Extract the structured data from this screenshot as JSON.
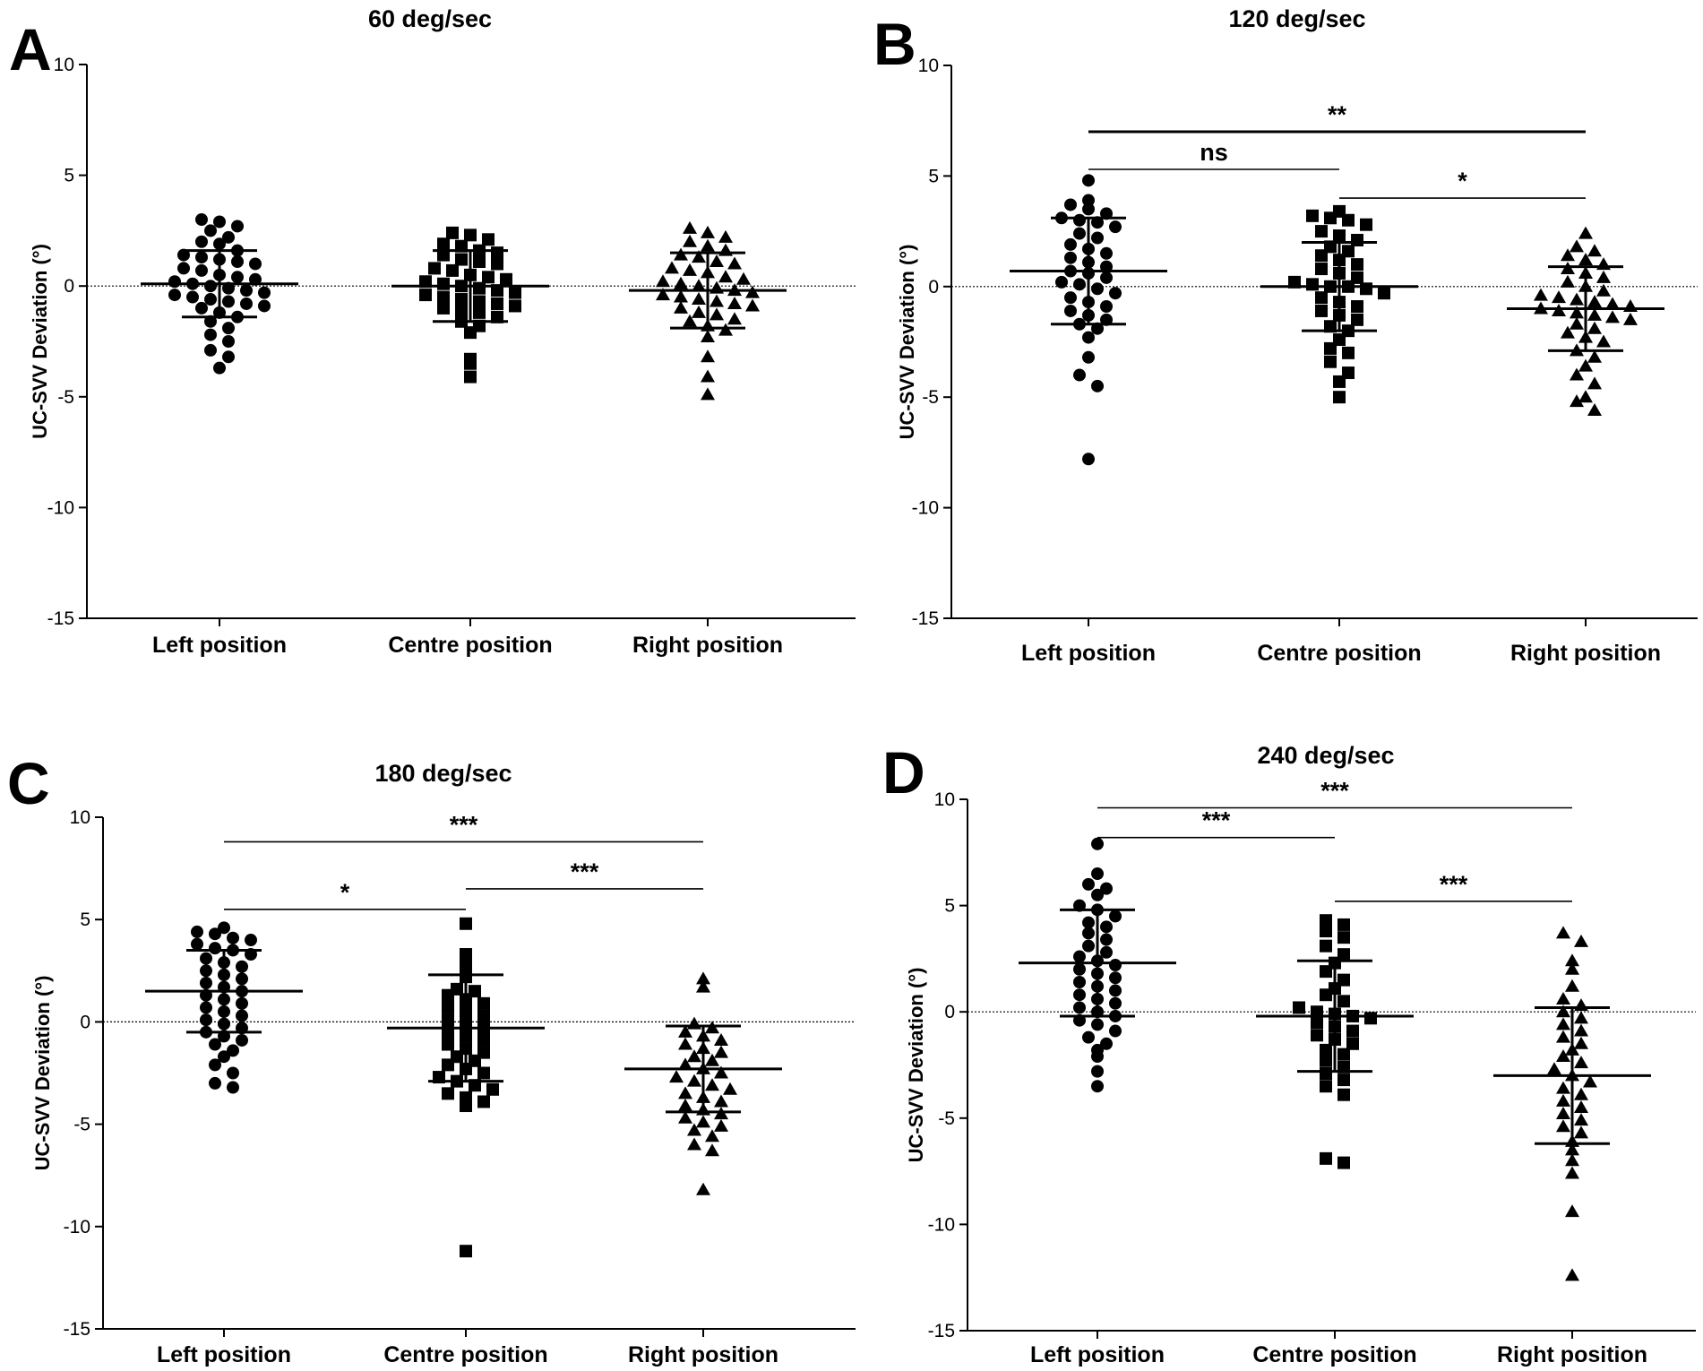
{
  "chart_data": [
    {
      "type": "scatter",
      "panel_letter": "A",
      "title": "60 deg/sec",
      "ylabel": "UC-SVV Deviation (°)",
      "ylim": [
        -15,
        10
      ],
      "yticks": [
        10,
        5,
        0,
        -5,
        -10,
        -15
      ],
      "categories": [
        "Left position",
        "Centre position",
        "Right position"
      ],
      "series": [
        {
          "name": "Left position",
          "marker": "circle",
          "mean": 0.1,
          "sd": 1.5,
          "values": [
            3.0,
            2.9,
            2.7,
            2.5,
            2.2,
            2.0,
            1.9,
            1.6,
            1.4,
            1.3,
            1.2,
            1.1,
            1.0,
            0.8,
            0.7,
            0.5,
            0.4,
            0.3,
            0.2,
            0.1,
            0.0,
            -0.1,
            -0.2,
            -0.3,
            -0.4,
            -0.5,
            -0.6,
            -0.7,
            -0.8,
            -0.9,
            -1.0,
            -1.2,
            -1.4,
            -1.6,
            -1.9,
            -2.2,
            -2.5,
            -2.9,
            -3.2,
            -3.7
          ]
        },
        {
          "name": "Centre position",
          "marker": "square",
          "mean": 0.0,
          "sd": 1.6,
          "values": [
            2.4,
            2.3,
            2.1,
            1.9,
            1.8,
            1.6,
            1.5,
            1.4,
            1.2,
            1.1,
            1.0,
            0.8,
            0.7,
            0.5,
            0.4,
            0.3,
            0.2,
            0.1,
            0.0,
            -0.1,
            -0.2,
            -0.3,
            -0.4,
            -0.5,
            -0.6,
            -0.7,
            -0.8,
            -0.9,
            -1.0,
            -1.1,
            -1.2,
            -1.4,
            -1.6,
            -1.8,
            -2.1,
            -3.3,
            -3.5,
            -4.1
          ]
        },
        {
          "name": "Right position",
          "marker": "triangle",
          "mean": -0.2,
          "sd": 1.7,
          "values": [
            2.6,
            2.4,
            2.2,
            2.0,
            1.8,
            1.6,
            1.4,
            1.3,
            1.1,
            1.0,
            0.8,
            0.7,
            0.6,
            0.4,
            0.3,
            0.2,
            0.1,
            0.0,
            -0.1,
            -0.2,
            -0.3,
            -0.4,
            -0.5,
            -0.6,
            -0.7,
            -0.8,
            -0.9,
            -1.0,
            -1.2,
            -1.3,
            -1.5,
            -1.6,
            -1.8,
            -2.0,
            -2.3,
            -3.2,
            -4.1,
            -4.9
          ]
        }
      ],
      "significance": []
    },
    {
      "type": "scatter",
      "panel_letter": "B",
      "title": "120 deg/sec",
      "ylabel": "UC-SVV Deviation (°)",
      "ylim": [
        -15,
        10
      ],
      "yticks": [
        10,
        5,
        0,
        -5,
        -10,
        -15
      ],
      "categories": [
        "Left position",
        "Centre position",
        "Right position"
      ],
      "series": [
        {
          "name": "Left position",
          "marker": "circle",
          "mean": 0.7,
          "sd": 2.4,
          "values": [
            4.8,
            3.9,
            3.7,
            3.5,
            3.3,
            3.1,
            3.0,
            2.9,
            2.7,
            2.4,
            2.2,
            1.9,
            1.7,
            1.5,
            1.3,
            1.1,
            0.9,
            0.7,
            0.6,
            0.4,
            0.2,
            0.1,
            -0.1,
            -0.3,
            -0.5,
            -0.7,
            -0.9,
            -1.1,
            -1.3,
            -1.5,
            -1.7,
            -1.9,
            -2.3,
            -3.2,
            -4.0,
            -4.5,
            -7.8
          ]
        },
        {
          "name": "Centre position",
          "marker": "square",
          "mean": 0.0,
          "sd": 2.0,
          "values": [
            3.4,
            3.2,
            3.1,
            3.0,
            2.8,
            2.5,
            2.3,
            2.1,
            1.8,
            1.6,
            1.4,
            1.2,
            1.0,
            0.8,
            0.6,
            0.4,
            0.2,
            0.1,
            0.0,
            0.0,
            -0.1,
            -0.3,
            -0.5,
            -0.7,
            -0.9,
            -1.1,
            -1.3,
            -1.5,
            -1.8,
            -2.0,
            -2.4,
            -2.8,
            -3.0,
            -3.4,
            -3.9,
            -4.3,
            -5.0
          ]
        },
        {
          "name": "Right position",
          "marker": "triangle",
          "mean": -1.0,
          "sd": 1.9,
          "values": [
            2.4,
            1.8,
            1.6,
            1.4,
            1.2,
            1.0,
            0.8,
            0.6,
            0.4,
            0.2,
            0.0,
            -0.2,
            -0.4,
            -0.5,
            -0.6,
            -0.7,
            -0.8,
            -0.9,
            -1.0,
            -1.1,
            -1.2,
            -1.3,
            -1.4,
            -1.5,
            -1.7,
            -1.9,
            -2.1,
            -2.3,
            -2.5,
            -2.9,
            -3.2,
            -3.6,
            -4.0,
            -4.4,
            -5.0,
            -5.2,
            -5.6
          ]
        }
      ],
      "significance": [
        {
          "from": 0,
          "to": 2,
          "label": "**",
          "y": 7.0
        },
        {
          "from": 0,
          "to": 1,
          "label": "ns",
          "y": 5.3
        },
        {
          "from": 1,
          "to": 2,
          "label": "*",
          "y": 4.0
        }
      ]
    },
    {
      "type": "scatter",
      "panel_letter": "C",
      "title": "180 deg/sec",
      "ylabel": "UC-SVV Deviation (°)",
      "ylim": [
        -15,
        10
      ],
      "yticks": [
        10,
        5,
        0,
        -5,
        -10,
        -15
      ],
      "categories": [
        "Left position",
        "Centre position",
        "Right position"
      ],
      "series": [
        {
          "name": "Left position",
          "marker": "circle",
          "mean": 1.5,
          "sd": 2.0,
          "values": [
            4.6,
            4.4,
            4.3,
            4.1,
            4.0,
            3.8,
            3.6,
            3.5,
            3.3,
            3.1,
            2.9,
            2.7,
            2.5,
            2.3,
            2.1,
            1.9,
            1.7,
            1.5,
            1.3,
            1.1,
            0.9,
            0.7,
            0.5,
            0.3,
            0.1,
            -0.1,
            -0.3,
            -0.5,
            -0.7,
            -0.9,
            -1.1,
            -1.4,
            -1.7,
            -2.1,
            -2.5,
            -3.0,
            -3.2
          ]
        },
        {
          "name": "Centre position",
          "marker": "square",
          "mean": -0.3,
          "sd": 2.6,
          "values": [
            4.8,
            3.3,
            2.7,
            2.2,
            1.6,
            1.5,
            1.3,
            1.1,
            0.9,
            0.7,
            0.5,
            0.3,
            0.1,
            -0.1,
            -0.3,
            -0.5,
            -0.7,
            -0.9,
            -1.1,
            -1.3,
            -1.5,
            -1.7,
            -1.9,
            -2.1,
            -2.3,
            -2.5,
            -2.7,
            -2.9,
            -3.1,
            -3.3,
            -3.5,
            -3.7,
            -3.9,
            -4.1,
            -11.2
          ]
        },
        {
          "name": "Right position",
          "marker": "triangle",
          "mean": -2.3,
          "sd": 2.1,
          "values": [
            2.1,
            1.7,
            -0.1,
            -0.3,
            -0.5,
            -0.7,
            -0.9,
            -1.1,
            -1.3,
            -1.5,
            -1.7,
            -1.9,
            -2.1,
            -2.3,
            -2.5,
            -2.7,
            -2.9,
            -3.1,
            -3.3,
            -3.5,
            -3.7,
            -3.9,
            -4.1,
            -4.3,
            -4.5,
            -4.7,
            -4.9,
            -5.1,
            -5.3,
            -5.6,
            -6.0,
            -6.3,
            -8.2
          ]
        }
      ],
      "significance": [
        {
          "from": 0,
          "to": 2,
          "label": "***",
          "y": 8.8
        },
        {
          "from": 0,
          "to": 1,
          "label": "*",
          "y": 5.5
        },
        {
          "from": 1,
          "to": 2,
          "label": "***",
          "y": 6.5
        }
      ]
    },
    {
      "type": "scatter",
      "panel_letter": "D",
      "title": "240 deg/sec",
      "ylabel": "UC-SVV Deviation (°)",
      "ylim": [
        -15,
        10
      ],
      "yticks": [
        10,
        5,
        0,
        -5,
        -10,
        -15
      ],
      "categories": [
        "Left position",
        "Centre position",
        "Right position"
      ],
      "series": [
        {
          "name": "Left position",
          "marker": "circle",
          "mean": 2.3,
          "sd": 2.5,
          "values": [
            7.9,
            6.5,
            6.0,
            5.8,
            5.5,
            5.0,
            4.8,
            4.5,
            4.2,
            4.0,
            3.7,
            3.4,
            3.1,
            2.8,
            2.6,
            2.4,
            2.2,
            2.0,
            1.8,
            1.6,
            1.4,
            1.2,
            1.0,
            0.8,
            0.6,
            0.4,
            0.2,
            0.0,
            -0.2,
            -0.4,
            -0.6,
            -0.9,
            -1.2,
            -1.5,
            -1.8,
            -2.1,
            -2.8,
            -3.5
          ]
        },
        {
          "name": "Centre position",
          "marker": "square",
          "mean": -0.2,
          "sd": 2.6,
          "values": [
            4.3,
            4.1,
            3.8,
            3.5,
            3.1,
            2.7,
            2.3,
            1.9,
            1.5,
            1.1,
            0.8,
            0.5,
            0.2,
            0.0,
            -0.1,
            -0.2,
            -0.3,
            -0.5,
            -0.7,
            -0.9,
            -1.1,
            -1.3,
            -1.5,
            -1.8,
            -2.0,
            -2.3,
            -2.6,
            -2.9,
            -3.2,
            -3.5,
            -3.9,
            -6.9,
            -7.1
          ]
        },
        {
          "name": "Right position",
          "marker": "triangle",
          "mean": -3.0,
          "sd": 3.2,
          "values": [
            3.7,
            3.3,
            2.4,
            2.0,
            1.2,
            0.6,
            0.3,
            0.0,
            -0.3,
            -0.6,
            -0.9,
            -1.2,
            -1.5,
            -1.8,
            -2.1,
            -2.4,
            -2.7,
            -3.0,
            -3.3,
            -3.6,
            -3.9,
            -4.2,
            -4.5,
            -4.8,
            -5.1,
            -5.4,
            -5.7,
            -6.1,
            -6.5,
            -7.0,
            -7.6,
            -9.4,
            -12.4
          ]
        }
      ],
      "significance": [
        {
          "from": 0,
          "to": 2,
          "label": "***",
          "y": 9.6
        },
        {
          "from": 0,
          "to": 1,
          "label": "***",
          "y": 8.2
        },
        {
          "from": 1,
          "to": 2,
          "label": "***",
          "y": 5.2
        }
      ]
    }
  ]
}
